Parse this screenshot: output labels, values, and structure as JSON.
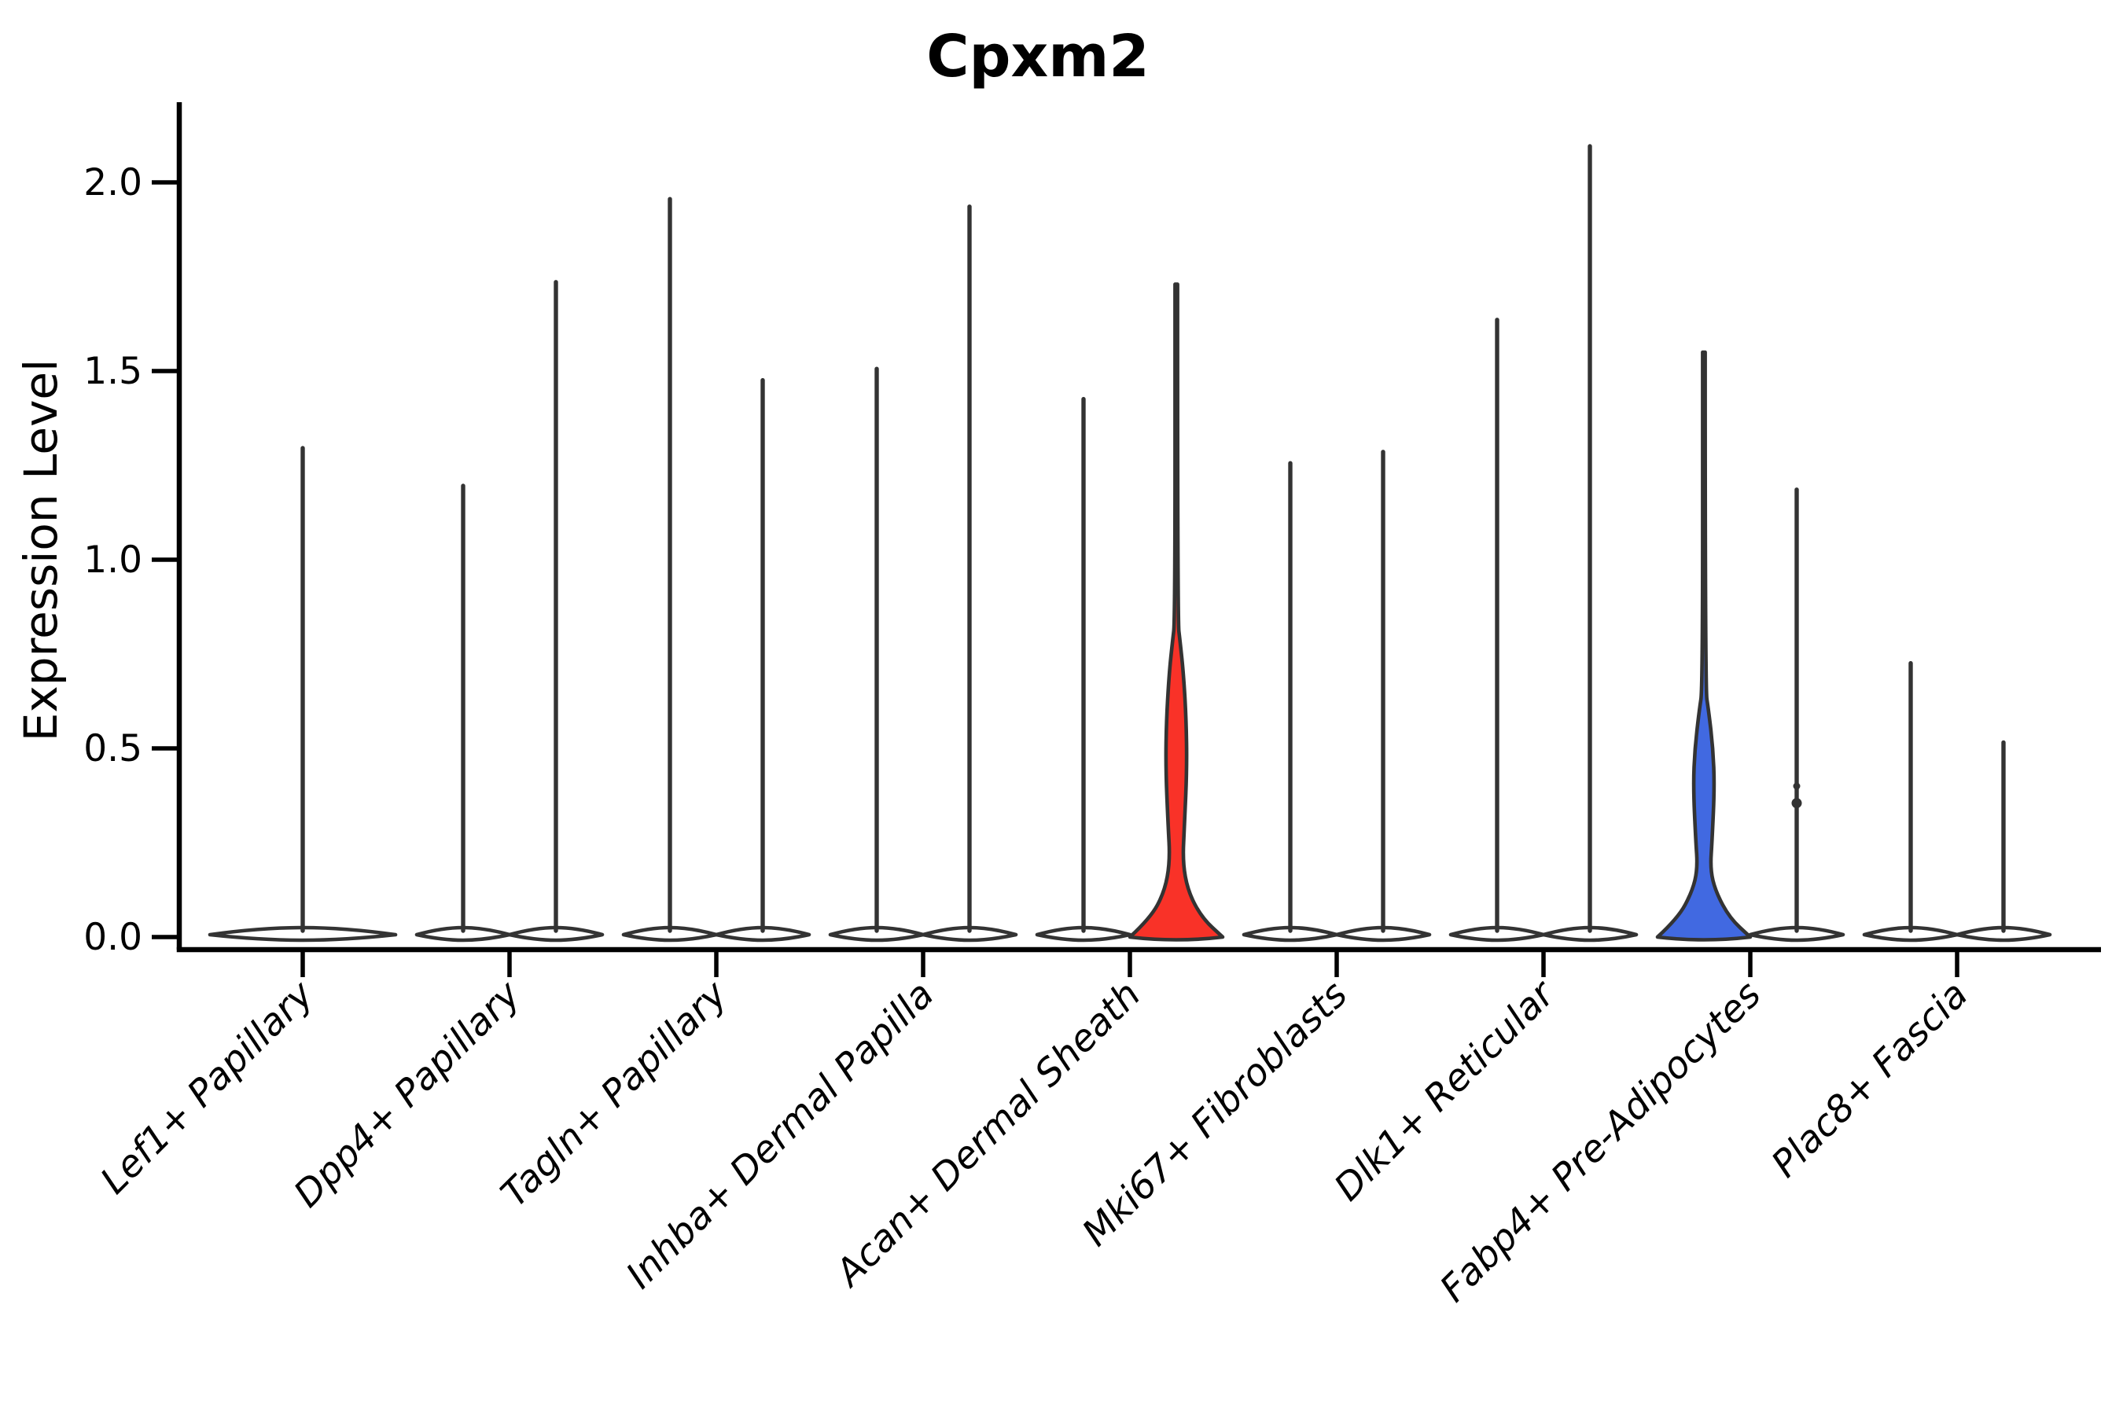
{
  "page": {
    "title": "Cpxm2"
  },
  "chart_data": {
    "type": "violin",
    "title": "Cpxm2",
    "xlabel": "",
    "ylabel": "Expression Level",
    "y_ticks": [
      0.0,
      0.5,
      1.0,
      1.5,
      2.0
    ],
    "ylim": [
      -0.03,
      2.21
    ],
    "grid": false,
    "legend": "none",
    "categories": [
      "Lef1+ Papillary",
      "Dpp4+ Papillary",
      "Tagln+ Papillary",
      "Inhba+ Dermal Papilla",
      "Acan+ Dermal Sheath",
      "Mki67+ Fibroblasts",
      "Dlk1+ Reticular",
      "Fabp4+ Pre-Adipocytes",
      "Plac8+ Fascia"
    ],
    "violins": [
      {
        "category_index": 0,
        "group": "single",
        "max_expression": 1.3,
        "fill": "white"
      },
      {
        "category_index": 1,
        "group": "left",
        "max_expression": 1.2,
        "fill": "white"
      },
      {
        "category_index": 1,
        "group": "right",
        "max_expression": 1.74,
        "fill": "white"
      },
      {
        "category_index": 2,
        "group": "left",
        "max_expression": 1.96,
        "fill": "white"
      },
      {
        "category_index": 2,
        "group": "right",
        "max_expression": 1.48,
        "fill": "white"
      },
      {
        "category_index": 3,
        "group": "left",
        "max_expression": 1.51,
        "fill": "white"
      },
      {
        "category_index": 3,
        "group": "right",
        "max_expression": 1.94,
        "fill": "white"
      },
      {
        "category_index": 4,
        "group": "left",
        "max_expression": 1.43,
        "fill": "white"
      },
      {
        "category_index": 4,
        "group": "right",
        "max_expression": 1.73,
        "fill": "red",
        "body": "red"
      },
      {
        "category_index": 5,
        "group": "left",
        "max_expression": 1.26,
        "fill": "white"
      },
      {
        "category_index": 5,
        "group": "right",
        "max_expression": 1.29,
        "fill": "white"
      },
      {
        "category_index": 6,
        "group": "left",
        "max_expression": 1.64,
        "fill": "white"
      },
      {
        "category_index": 6,
        "group": "right",
        "max_expression": 2.1,
        "fill": "white"
      },
      {
        "category_index": 7,
        "group": "left",
        "max_expression": 1.55,
        "fill": "blue",
        "body": "blue"
      },
      {
        "category_index": 7,
        "group": "right",
        "max_expression": 1.19,
        "fill": "white",
        "outlier_points": [
          0.355,
          0.4
        ]
      },
      {
        "category_index": 8,
        "group": "left",
        "max_expression": 0.73,
        "fill": "white"
      },
      {
        "category_index": 8,
        "group": "right",
        "max_expression": 0.52,
        "fill": "white"
      }
    ],
    "body_profiles": {
      "red": [
        [
          0,
          59
        ],
        [
          0.05,
          33
        ],
        [
          0.12,
          15
        ],
        [
          0.2,
          8
        ],
        [
          0.3,
          10.5
        ],
        [
          0.45,
          13.5
        ],
        [
          0.58,
          12.5
        ],
        [
          0.7,
          9
        ],
        [
          0.78,
          5
        ],
        [
          0.84,
          1.6
        ]
      ],
      "blue": [
        [
          0,
          59
        ],
        [
          0.05,
          33
        ],
        [
          0.12,
          15
        ],
        [
          0.18,
          8
        ],
        [
          0.26,
          10.5
        ],
        [
          0.4,
          13.5
        ],
        [
          0.5,
          11.5
        ],
        [
          0.6,
          6
        ],
        [
          0.66,
          1.6
        ]
      ]
    },
    "colors": {
      "highlight_red": "#F93228",
      "highlight_blue": "#4169E1",
      "violin_outline": "#333333",
      "axis": "#000000",
      "background": "#ffffff"
    }
  }
}
